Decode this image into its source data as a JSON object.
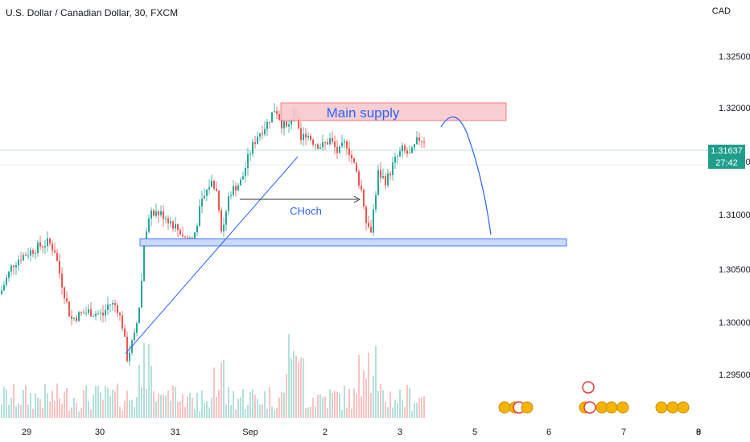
{
  "header": {
    "title": "U.S. Dollar / Canadian Dollar, 30, FXCM",
    "currency": "CAD"
  },
  "price_tag": {
    "price": "1.31637",
    "countdown": "27:42"
  },
  "annotations": {
    "supply_zone_label": "Main supply",
    "choch_label": "CHoch"
  },
  "colors": {
    "up": "#26a69a",
    "down": "#ef5350",
    "annotation": "#2962ff",
    "supply_fill": "#f8c9cf",
    "demand_fill": "#c8dbff"
  },
  "chart_data": {
    "type": "candlestick",
    "title": "U.S. Dollar / Canadian Dollar, 30, FXCM",
    "ylabel": "CAD",
    "ylim": [
      1.292,
      1.3285
    ],
    "y_ticks": [
      "1.29500",
      "1.30000",
      "1.30500",
      "1.31000",
      "1.31500",
      "1.32000",
      "1.32500"
    ],
    "x_ticks": [
      "29",
      "30",
      "31",
      "Sep",
      "2",
      "3",
      "5",
      "6",
      "7",
      "8",
      "9"
    ],
    "last_price": 1.31637,
    "grid": false,
    "close_path": [
      [
        0,
        1.303
      ],
      [
        15,
        1.3055
      ],
      [
        25,
        1.3062
      ],
      [
        40,
        1.3068
      ],
      [
        50,
        1.3072
      ],
      [
        60,
        1.3075
      ],
      [
        68,
        1.3068
      ],
      [
        75,
        1.3045
      ],
      [
        82,
        1.3025
      ],
      [
        88,
        1.3008
      ],
      [
        98,
        1.3012
      ],
      [
        110,
        1.3015
      ],
      [
        128,
        1.3012
      ],
      [
        135,
        1.3022
      ],
      [
        145,
        1.302
      ],
      [
        152,
        1.3003
      ],
      [
        158,
        1.2975
      ],
      [
        168,
        1.2995
      ],
      [
        175,
        1.303
      ],
      [
        180,
        1.3085
      ],
      [
        190,
        1.3102
      ],
      [
        205,
        1.3098
      ],
      [
        220,
        1.3087
      ],
      [
        230,
        1.3079
      ],
      [
        240,
        1.3078
      ],
      [
        250,
        1.3108
      ],
      [
        262,
        1.3128
      ],
      [
        270,
        1.3118
      ],
      [
        276,
        1.3082
      ],
      [
        285,
        1.3118
      ],
      [
        300,
        1.3128
      ],
      [
        310,
        1.3152
      ],
      [
        320,
        1.3168
      ],
      [
        332,
        1.3178
      ],
      [
        342,
        1.3192
      ],
      [
        350,
        1.3178
      ],
      [
        358,
        1.3172
      ],
      [
        365,
        1.3192
      ],
      [
        373,
        1.3162
      ],
      [
        380,
        1.317
      ],
      [
        390,
        1.3162
      ],
      [
        400,
        1.3158
      ],
      [
        410,
        1.3164
      ],
      [
        420,
        1.3152
      ],
      [
        430,
        1.3162
      ],
      [
        440,
        1.3142
      ],
      [
        450,
        1.3118
      ],
      [
        456,
        1.3092
      ],
      [
        460,
        1.3082
      ],
      [
        465,
        1.3108
      ],
      [
        470,
        1.3135
      ],
      [
        480,
        1.3128
      ],
      [
        490,
        1.3145
      ],
      [
        500,
        1.3155
      ],
      [
        510,
        1.315
      ],
      [
        520,
        1.3165
      ],
      [
        527,
        1.31637
      ]
    ],
    "zones": [
      {
        "label": "Main supply",
        "y_low": 1.3193,
        "y_high": 1.3211
      },
      {
        "label": "",
        "y_low": 1.3076,
        "y_high": 1.3081
      }
    ]
  }
}
